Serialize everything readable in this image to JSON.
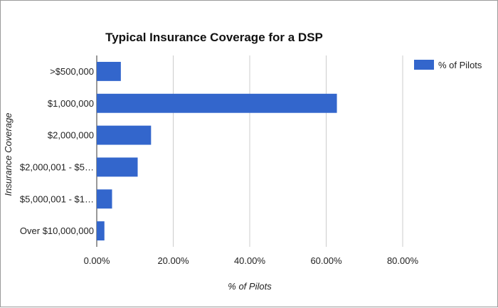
{
  "chart_data": {
    "type": "bar",
    "orientation": "horizontal",
    "title": "Typical Insurance Coverage for a DSP",
    "categories": [
      ">$500,000",
      "$1,000,000",
      "$2,000,000",
      "$2,000,001 - $5…",
      "$5,000,001 - $1…",
      "Over $10,000,000"
    ],
    "series": [
      {
        "name": "% of Pilots",
        "values": [
          6.3,
          62.8,
          14.2,
          10.7,
          4.0,
          2.0
        ],
        "color": "#3366cc"
      }
    ],
    "xlabel": "% of Pilots",
    "ylabel": "Insurance Coverage",
    "xlim": [
      0,
      80
    ],
    "xticks": [
      0,
      20,
      40,
      60,
      80
    ],
    "xtick_labels": [
      "0.00%",
      "20.00%",
      "40.00%",
      "60.00%",
      "80.00%"
    ],
    "grid": true,
    "legend_position": "top-right"
  }
}
